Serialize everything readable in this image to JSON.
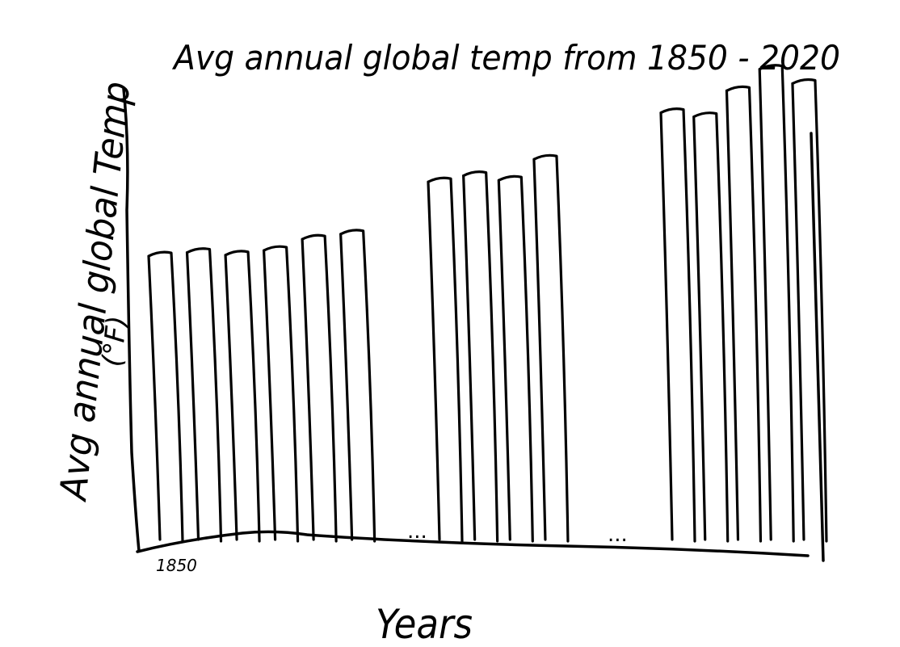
{
  "chart_data": {
    "type": "bar",
    "title": "Avg annual global temp from    1850 - 2020",
    "xlabel": "Years",
    "ylabel": "Avg annual global Temp",
    "ylabel_unit": "(°F)",
    "tick_labels": [
      "1850"
    ],
    "gap_markers": [
      "...",
      "..."
    ],
    "groups": [
      {
        "name": "",
        "values": [
          56.3,
          57.0,
          56.5,
          57.4,
          59.6,
          60.6
        ]
      },
      {
        "name": "",
        "values": [
          70.8,
          72.0,
          71.1,
          75.2
        ]
      },
      {
        "name": "",
        "values": [
          84.3,
          83.5,
          88.6,
          92.8,
          90.0
        ]
      }
    ],
    "ylim": [
      0,
      100
    ],
    "grid": false,
    "legend": "none",
    "colors": {
      "ink": "#000000",
      "fill": "#ffffff"
    }
  }
}
